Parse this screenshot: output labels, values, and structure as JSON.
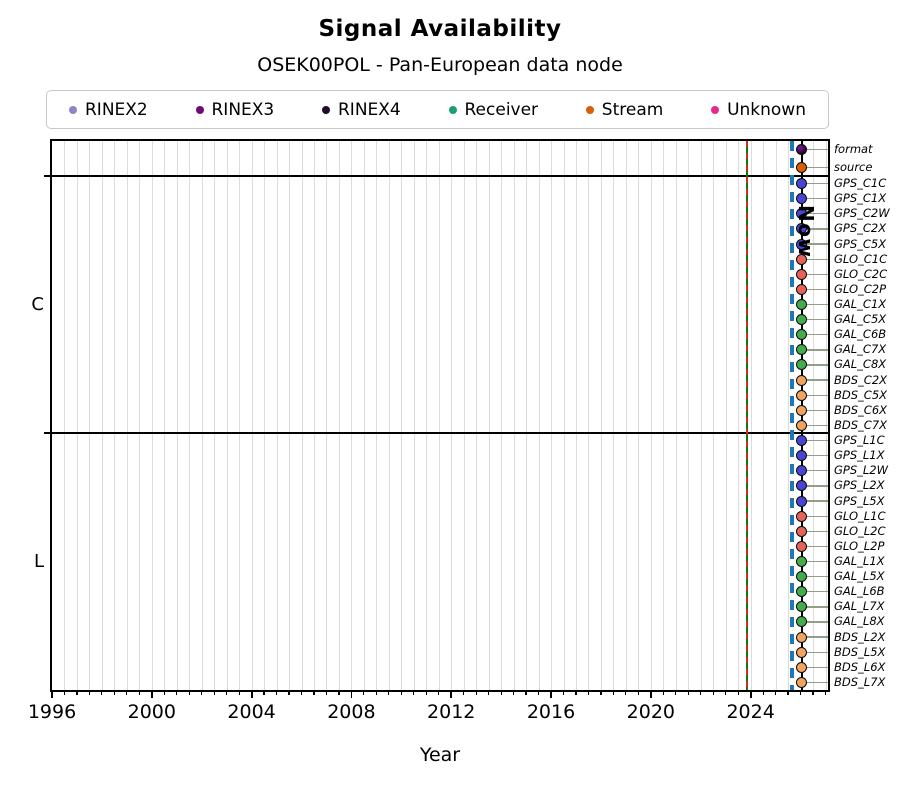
{
  "chart_data": {
    "type": "scatter",
    "title": "Signal Availability",
    "subtitle": "OSEK00POL - Pan-European data node",
    "xlabel": "Year",
    "x_range": [
      1996,
      2027.1
    ],
    "x_major_ticks": [
      "1996",
      "2000",
      "2004",
      "2008",
      "2012",
      "2016",
      "2020",
      "2024"
    ],
    "x_minor_step_years": 0.5,
    "grid": "vertical gridlines at every minor (half-year) tick, light gray",
    "legend": {
      "position": "top",
      "entries": [
        {
          "label": "RINEX2",
          "color": "#8b87c5"
        },
        {
          "label": "RINEX3",
          "color": "#6e0b74"
        },
        {
          "label": "RINEX4",
          "color": "#200b28"
        },
        {
          "label": "Receiver",
          "color": "#1b9e77"
        },
        {
          "label": "Stream",
          "color": "#d95f02"
        },
        {
          "label": "Unknown",
          "color": "#e7298a"
        }
      ]
    },
    "group_colors": {
      "format": "#3f0a4e",
      "stream": "#d95f02",
      "gps": "#4745d6",
      "glo": "#e7635a",
      "gal": "#43ad4d",
      "bds": "#f2a45f"
    },
    "points_at_year": 2026.05,
    "sections": [
      {
        "id": "meta",
        "axis_label": "",
        "rows": [
          {
            "label": "format",
            "group": "format"
          },
          {
            "label": "source",
            "group": "stream"
          }
        ]
      },
      {
        "id": "C",
        "axis_label": "C",
        "rows": [
          {
            "label": "GPS_C1C",
            "group": "gps"
          },
          {
            "label": "GPS_C1X",
            "group": "gps"
          },
          {
            "label": "GPS_C2W",
            "group": "gps"
          },
          {
            "label": "GPS_C2X",
            "group": "gps"
          },
          {
            "label": "GPS_C5X",
            "group": "gps"
          },
          {
            "label": "GLO_C1C",
            "group": "glo"
          },
          {
            "label": "GLO_C2C",
            "group": "glo"
          },
          {
            "label": "GLO_C2P",
            "group": "glo"
          },
          {
            "label": "GAL_C1X",
            "group": "gal"
          },
          {
            "label": "GAL_C5X",
            "group": "gal"
          },
          {
            "label": "GAL_C6B",
            "group": "gal"
          },
          {
            "label": "GAL_C7X",
            "group": "gal"
          },
          {
            "label": "GAL_C8X",
            "group": "gal"
          },
          {
            "label": "BDS_C2X",
            "group": "bds"
          },
          {
            "label": "BDS_C5X",
            "group": "bds"
          },
          {
            "label": "BDS_C6X",
            "group": "bds"
          },
          {
            "label": "BDS_C7X",
            "group": "bds"
          }
        ]
      },
      {
        "id": "L",
        "axis_label": "L",
        "rows": [
          {
            "label": "GPS_L1C",
            "group": "gps"
          },
          {
            "label": "GPS_L1X",
            "group": "gps"
          },
          {
            "label": "GPS_L2W",
            "group": "gps"
          },
          {
            "label": "GPS_L2X",
            "group": "gps"
          },
          {
            "label": "GPS_L5X",
            "group": "gps"
          },
          {
            "label": "GLO_L1C",
            "group": "glo"
          },
          {
            "label": "GLO_L2C",
            "group": "glo"
          },
          {
            "label": "GLO_L2P",
            "group": "glo"
          },
          {
            "label": "GAL_L1X",
            "group": "gal"
          },
          {
            "label": "GAL_L5X",
            "group": "gal"
          },
          {
            "label": "GAL_L6B",
            "group": "gal"
          },
          {
            "label": "GAL_L7X",
            "group": "gal"
          },
          {
            "label": "GAL_L8X",
            "group": "gal"
          },
          {
            "label": "BDS_L2X",
            "group": "bds"
          },
          {
            "label": "BDS_L5X",
            "group": "bds"
          },
          {
            "label": "BDS_L6X",
            "group": "bds"
          },
          {
            "label": "BDS_L7X",
            "group": "bds"
          }
        ]
      }
    ],
    "vlines": [
      {
        "name": "green-red-dashed-line",
        "year": 2023.85,
        "style": "green-red-dashed",
        "colors": [
          "#008000",
          "#d62728"
        ],
        "label": ""
      },
      {
        "name": "blue-dashed-line",
        "year": 2025.65,
        "style": "blue-dashed",
        "colors": [
          "#1f77b4"
        ],
        "label": ""
      },
      {
        "name": "now-line",
        "year": 2026.05,
        "style": "solid-black",
        "colors": [
          "#000000"
        ],
        "label": "Now"
      }
    ]
  }
}
